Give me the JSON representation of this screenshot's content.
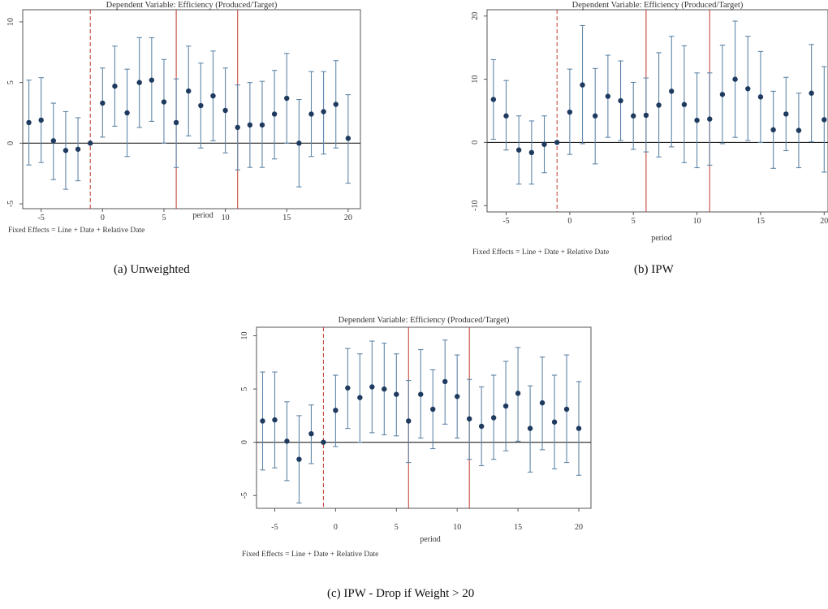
{
  "chart_data": [
    {
      "type": "errorbar",
      "title": "Dependent Variable: Efficiency (Produced/Target)",
      "xlabel": "period",
      "note": "Fixed Effects = Line + Date + Relative Date",
      "caption": "(a) Unweighted",
      "xlim": [
        -6.5,
        21
      ],
      "ylim": [
        -5.4,
        11
      ],
      "xticks": [
        -5,
        0,
        5,
        10,
        15,
        20
      ],
      "yticks": [
        -5,
        0,
        5,
        10
      ],
      "dashed_vline": -1,
      "solid_vlines": [
        6,
        11
      ],
      "x": [
        -6,
        -5,
        -4,
        -3,
        -2,
        -1,
        0,
        1,
        2,
        3,
        4,
        5,
        6,
        7,
        8,
        9,
        10,
        11,
        12,
        13,
        14,
        15,
        16,
        17,
        18,
        19,
        20
      ],
      "y": [
        1.7,
        1.9,
        0.2,
        -0.6,
        -0.5,
        0,
        3.3,
        4.7,
        2.5,
        5.0,
        5.2,
        3.4,
        1.7,
        4.3,
        3.1,
        3.9,
        2.7,
        1.3,
        1.5,
        1.5,
        2.4,
        3.7,
        0,
        2.4,
        2.6,
        3.2,
        0.4
      ],
      "lower": [
        -1.8,
        -1.6,
        -3.0,
        -3.8,
        -3.1,
        null,
        0.5,
        1.4,
        -1.1,
        1.3,
        1.8,
        0,
        -2.0,
        0.6,
        -0.4,
        0.2,
        -0.8,
        -2.2,
        -2.0,
        -2.0,
        -1.3,
        0,
        -3.6,
        -1.1,
        -0.9,
        -0.4,
        -3.3
      ],
      "upper": [
        5.2,
        5.4,
        3.3,
        2.6,
        2.1,
        null,
        6.2,
        8.0,
        6.1,
        8.7,
        8.7,
        6.9,
        5.3,
        8.0,
        6.6,
        7.6,
        6.2,
        4.8,
        5.0,
        5.1,
        6.0,
        7.4,
        3.6,
        5.9,
        5.9,
        6.8,
        4.0
      ]
    },
    {
      "type": "errorbar",
      "title": "Dependent Variable: Efficiency (Produced/Target)",
      "xlabel": "period",
      "note": "Fixed Effects = Line + Date + Relative Date",
      "caption": "(b) IPW",
      "xlim": [
        -6.5,
        20.3
      ],
      "ylim": [
        -11,
        21
      ],
      "xticks": [
        -5,
        0,
        5,
        10,
        15,
        20
      ],
      "yticks": [
        -10,
        0,
        10,
        20
      ],
      "dashed_vline": -1,
      "solid_vlines": [
        6,
        11
      ],
      "x": [
        -6,
        -5,
        -4,
        -3,
        -2,
        -1,
        0,
        1,
        2,
        3,
        4,
        5,
        6,
        7,
        8,
        9,
        10,
        11,
        12,
        13,
        14,
        15,
        16,
        17,
        18,
        19,
        20
      ],
      "y": [
        6.8,
        4.2,
        -1.2,
        -1.6,
        -0.3,
        0,
        4.8,
        9.1,
        4.2,
        7.3,
        6.6,
        4.2,
        4.3,
        5.9,
        8.1,
        6.0,
        3.5,
        3.7,
        7.6,
        10.0,
        8.5,
        7.2,
        2.0,
        4.5,
        1.9,
        7.8,
        3.6
      ],
      "lower": [
        0.5,
        -1.2,
        -6.6,
        -6.6,
        -4.8,
        null,
        -1.9,
        -0.2,
        -3.4,
        0.8,
        0.3,
        -1.1,
        -1.5,
        -2.3,
        -0.7,
        -3.2,
        -4.0,
        -3.6,
        -0.2,
        0.8,
        0.3,
        0.0,
        -4.1,
        -1.3,
        -4.0,
        0.1,
        -4.7
      ],
      "upper": [
        13.1,
        9.8,
        4.2,
        3.4,
        4.2,
        null,
        11.6,
        18.5,
        11.7,
        13.8,
        12.9,
        9.5,
        10.2,
        14.2,
        16.8,
        15.3,
        11.0,
        11.0,
        15.4,
        19.2,
        16.8,
        14.4,
        8.1,
        10.3,
        7.8,
        15.5,
        12.0
      ]
    },
    {
      "type": "errorbar",
      "title": "Dependent Variable: Efficiency (Produced/Target)",
      "xlabel": "period",
      "note": "Fixed Effects = Line + Date + Relative Date",
      "caption": "(c) IPW - Drop if Weight > 20",
      "xlim": [
        -6.5,
        21
      ],
      "ylim": [
        -6.2,
        10.8
      ],
      "xticks": [
        -5,
        0,
        5,
        10,
        15,
        20
      ],
      "yticks": [
        -5,
        0,
        5,
        10
      ],
      "dashed_vline": -1,
      "solid_vlines": [
        6,
        11
      ],
      "x": [
        -6,
        -5,
        -4,
        -3,
        -2,
        -1,
        0,
        1,
        2,
        3,
        4,
        5,
        6,
        7,
        8,
        9,
        10,
        11,
        12,
        13,
        14,
        15,
        16,
        17,
        18,
        19,
        20
      ],
      "y": [
        2.0,
        2.1,
        0.1,
        -1.6,
        0.8,
        0,
        3.0,
        5.1,
        4.2,
        5.2,
        5.0,
        4.5,
        2.0,
        4.5,
        3.1,
        5.7,
        4.3,
        2.2,
        1.5,
        2.3,
        3.4,
        4.6,
        1.3,
        3.7,
        1.9,
        3.1,
        1.3
      ],
      "lower": [
        -2.6,
        -2.4,
        -3.6,
        -5.7,
        -2.0,
        null,
        -0.4,
        1.3,
        0,
        0.9,
        0.7,
        0.6,
        -1.9,
        0.4,
        -0.6,
        1.7,
        0.4,
        -1.6,
        -2.2,
        -1.6,
        -0.8,
        0.1,
        -2.8,
        -0.7,
        -2.5,
        -1.9,
        -3.1
      ],
      "upper": [
        6.6,
        6.6,
        3.8,
        2.5,
        3.5,
        null,
        6.3,
        8.8,
        8.3,
        9.5,
        9.3,
        8.3,
        5.8,
        8.7,
        6.8,
        9.6,
        8.2,
        5.9,
        5.2,
        6.3,
        7.6,
        8.9,
        5.3,
        8.0,
        6.3,
        8.2,
        5.7
      ]
    }
  ]
}
